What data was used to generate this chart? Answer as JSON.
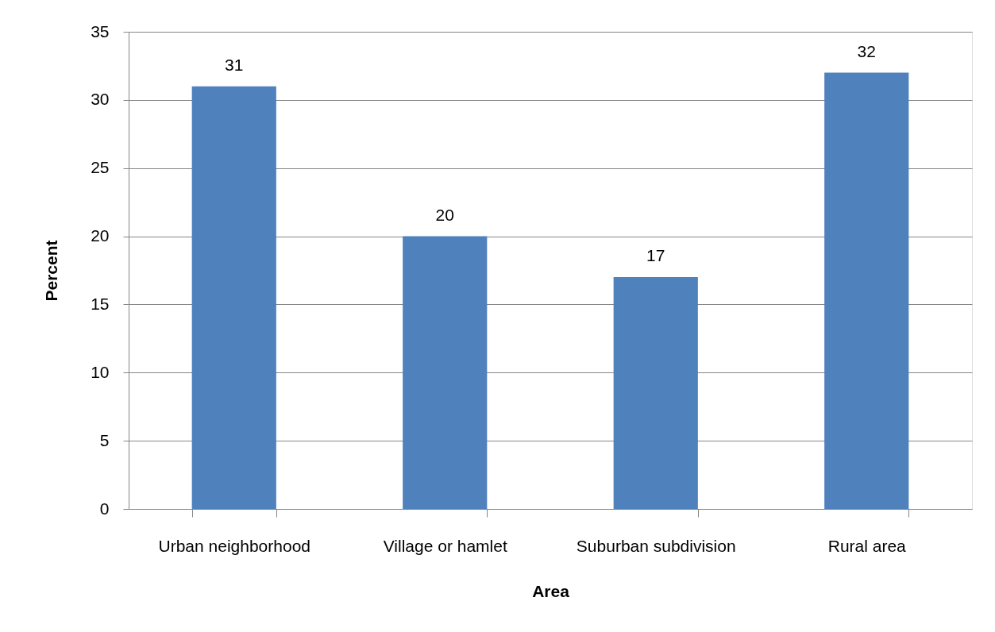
{
  "chart_data": {
    "type": "bar",
    "xlabel": "Area",
    "ylabel": "Percent",
    "categories": [
      "Urban neighborhood",
      "Village or hamlet",
      "Suburban subdivision",
      "Rural area"
    ],
    "values": [
      31,
      20,
      17,
      32
    ],
    "color": "#4f81bd",
    "ylim": [
      0,
      35
    ],
    "yticks": [
      0,
      5,
      10,
      15,
      20,
      25,
      30,
      35
    ],
    "grid": "y",
    "data_labels": true
  }
}
